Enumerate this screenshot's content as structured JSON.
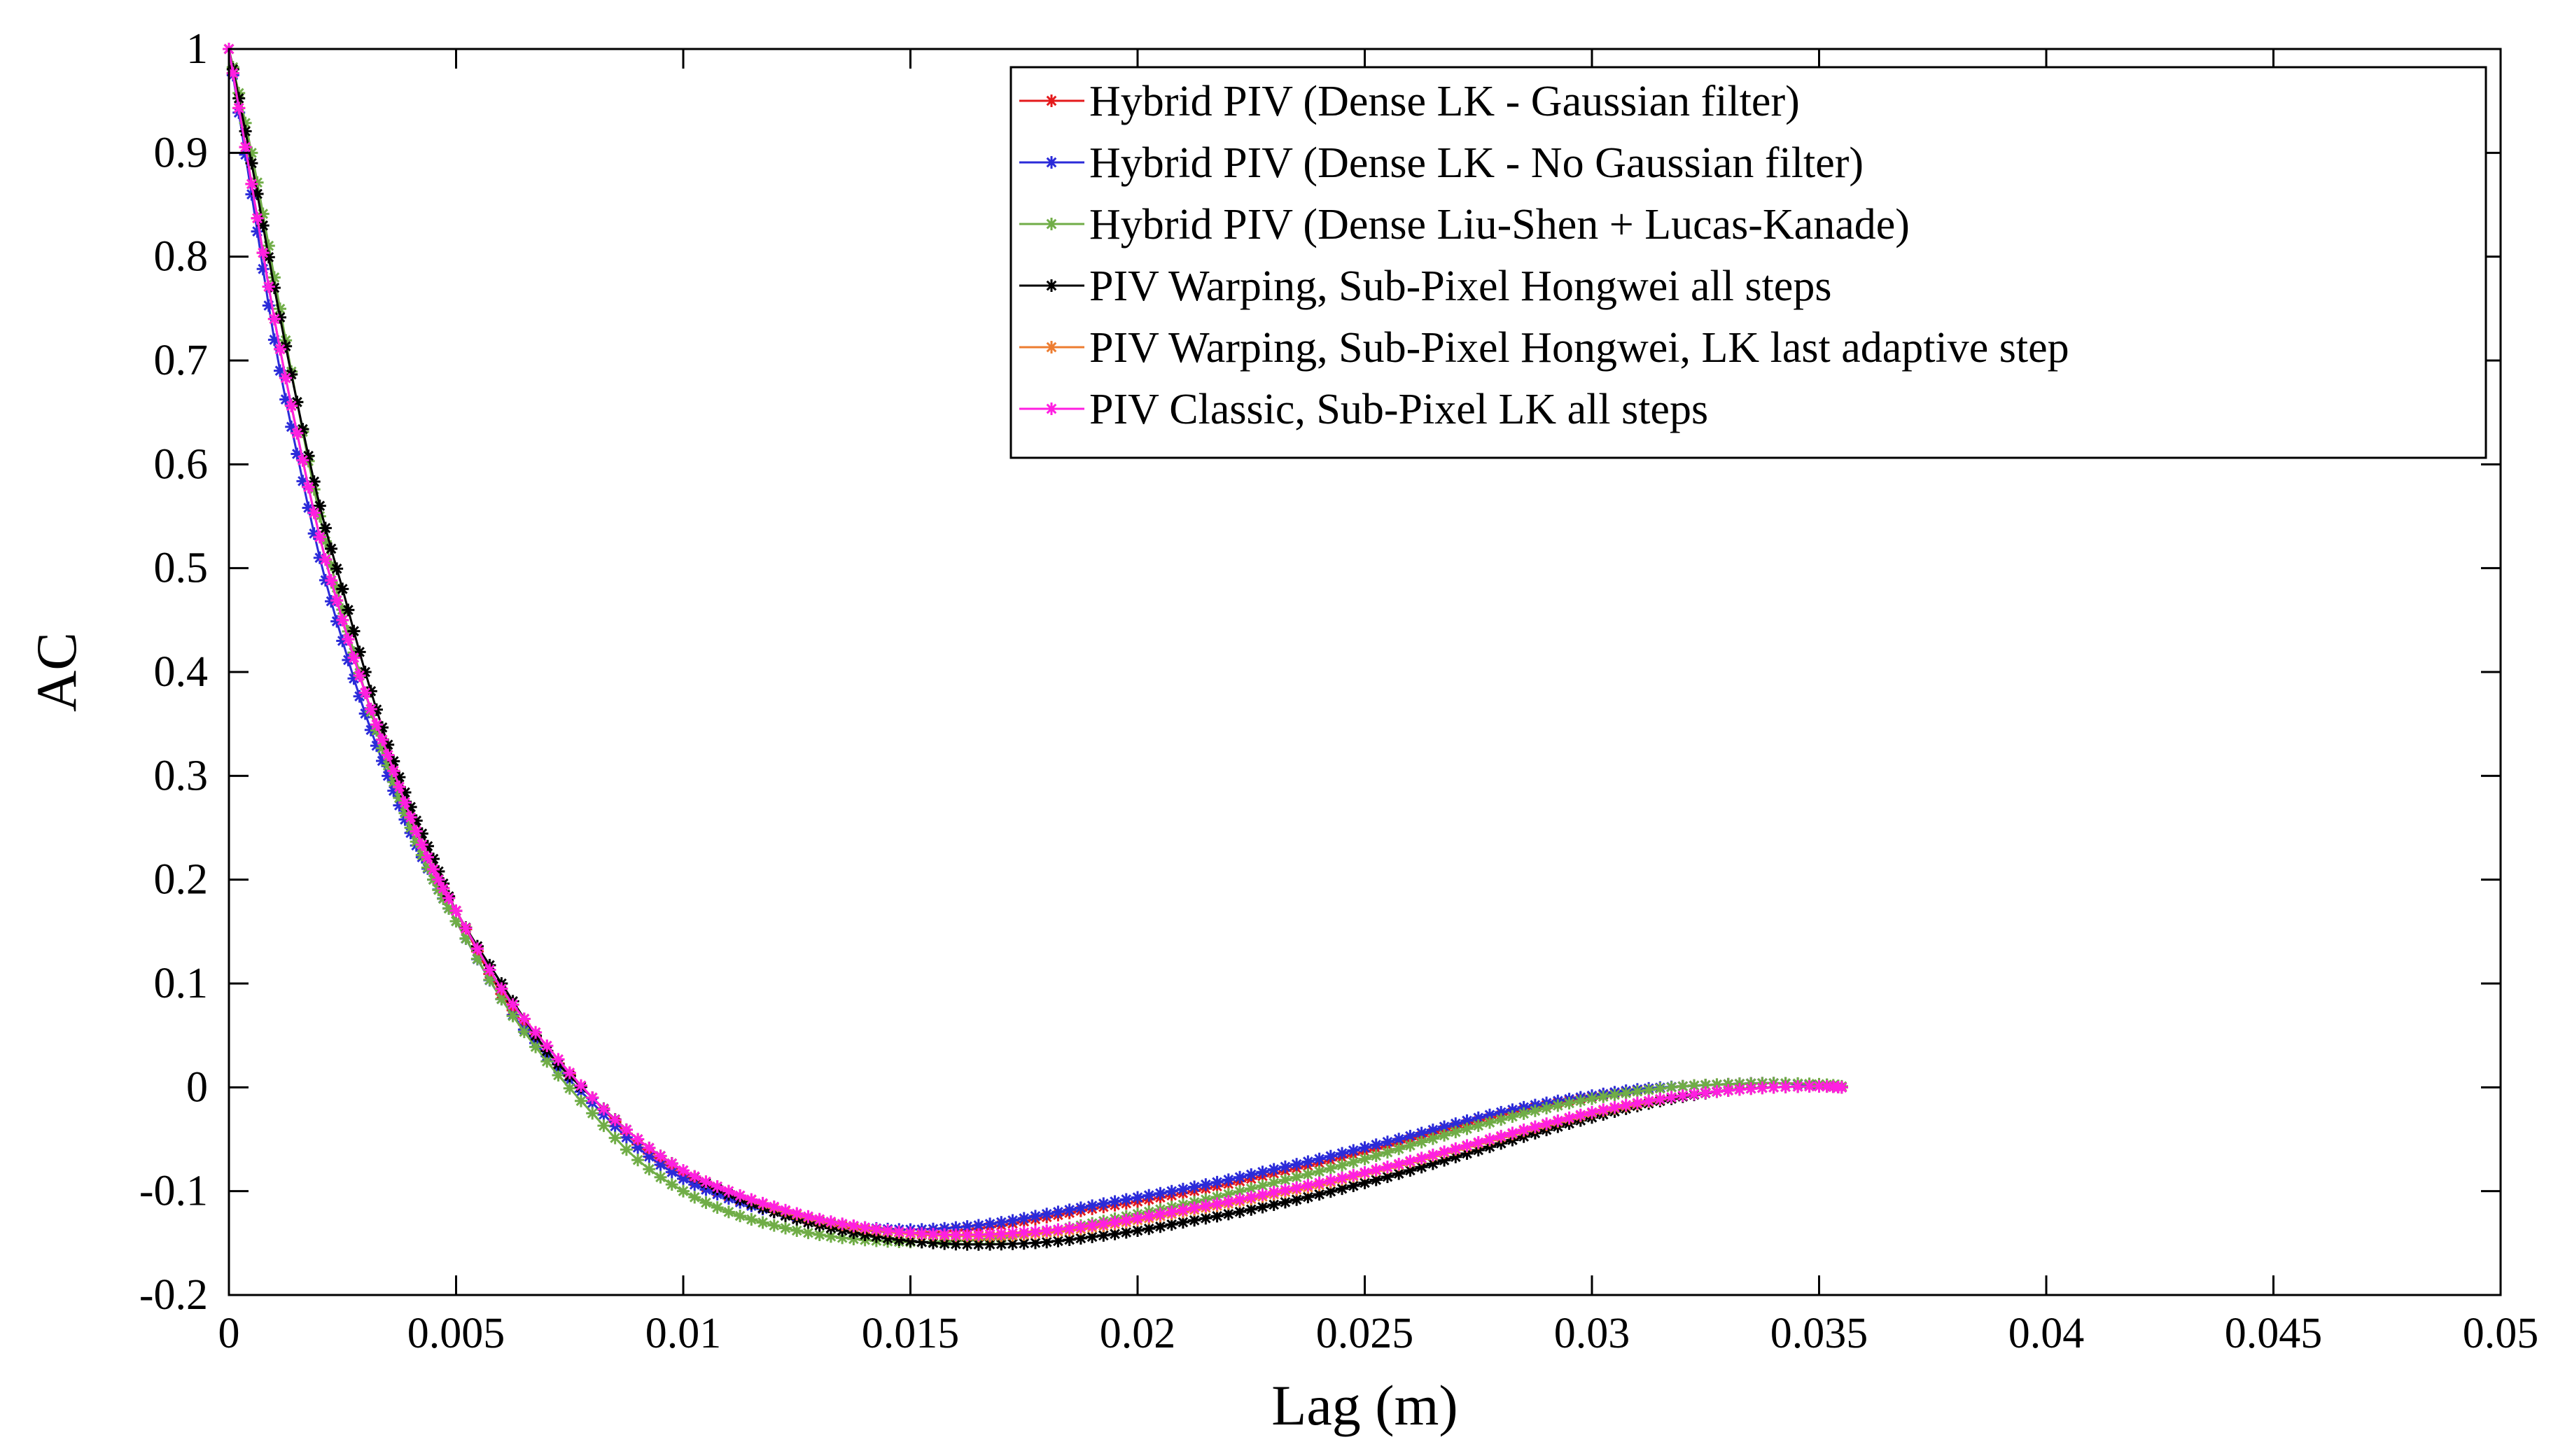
{
  "chart_data": {
    "type": "line",
    "title": "",
    "xlabel": "Lag (m)",
    "ylabel": "AC",
    "xlim": [
      0,
      0.05
    ],
    "ylim": [
      -0.2,
      1
    ],
    "xticks": [
      0,
      0.005,
      0.01,
      0.015,
      0.02,
      0.025,
      0.03,
      0.035,
      0.04,
      0.045,
      0.05
    ],
    "xtick_labels": [
      "0",
      "0.005",
      "0.01",
      "0.015",
      "0.02",
      "0.025",
      "0.03",
      "0.035",
      "0.04",
      "0.045",
      "0.05"
    ],
    "yticks": [
      -0.2,
      -0.1,
      0,
      0.1,
      0.2,
      0.3,
      0.4,
      0.5,
      0.6,
      0.7,
      0.8,
      0.9,
      1
    ],
    "ytick_labels": [
      "-0.2",
      "-0.1",
      "0",
      "0.1",
      "0.2",
      "0.3",
      "0.4",
      "0.5",
      "0.6",
      "0.7",
      "0.8",
      "0.9",
      "1"
    ],
    "grid": false,
    "legend_position": "top-right",
    "series": [
      {
        "name": "Hybrid PIV (Dense LK - Gaussian filter)",
        "color": "#e41a1c",
        "marker": "asterisk",
        "x": [
          0,
          0.0005,
          0.001,
          0.0015,
          0.002,
          0.0025,
          0.003,
          0.0035,
          0.004,
          0.0045,
          0.005,
          0.006,
          0.007,
          0.008,
          0.009,
          0.01,
          0.011,
          0.012,
          0.013,
          0.014,
          0.015,
          0.016,
          0.017,
          0.018,
          0.019,
          0.02,
          0.021,
          0.022,
          0.023,
          0.024,
          0.025,
          0.026,
          0.027,
          0.028,
          0.029,
          0.03,
          0.031,
          0.032,
          0.033,
          0.034,
          0.035,
          0.0355
        ],
        "y": [
          1,
          0.87,
          0.74,
          0.63,
          0.53,
          0.45,
          0.38,
          0.32,
          0.26,
          0.21,
          0.17,
          0.09,
          0.035,
          -0.01,
          -0.055,
          -0.085,
          -0.105,
          -0.12,
          -0.13,
          -0.137,
          -0.14,
          -0.138,
          -0.133,
          -0.125,
          -0.117,
          -0.11,
          -0.102,
          -0.093,
          -0.083,
          -0.073,
          -0.062,
          -0.05,
          -0.038,
          -0.027,
          -0.017,
          -0.009,
          -0.003,
          0.001,
          0.003,
          0.004,
          0.002,
          0.0
        ]
      },
      {
        "name": "Hybrid PIV (Dense LK - No Gaussian filter)",
        "color": "#2b2bd9",
        "marker": "asterisk",
        "x": [
          0,
          0.0005,
          0.001,
          0.0015,
          0.002,
          0.0025,
          0.003,
          0.0035,
          0.004,
          0.0045,
          0.005,
          0.006,
          0.007,
          0.008,
          0.009,
          0.01,
          0.011,
          0.012,
          0.013,
          0.014,
          0.015,
          0.016,
          0.017,
          0.018,
          0.019,
          0.02,
          0.021,
          0.022,
          0.023,
          0.024,
          0.025,
          0.026,
          0.027,
          0.028,
          0.029,
          0.03,
          0.031,
          0.032,
          0.033,
          0.034,
          0.035,
          0.0355
        ],
        "y": [
          1,
          0.86,
          0.72,
          0.61,
          0.51,
          0.43,
          0.36,
          0.3,
          0.245,
          0.2,
          0.16,
          0.085,
          0.03,
          -0.015,
          -0.058,
          -0.088,
          -0.107,
          -0.12,
          -0.129,
          -0.135,
          -0.137,
          -0.135,
          -0.13,
          -0.122,
          -0.114,
          -0.106,
          -0.098,
          -0.089,
          -0.079,
          -0.069,
          -0.058,
          -0.047,
          -0.035,
          -0.024,
          -0.015,
          -0.008,
          -0.002,
          0.001,
          0.003,
          0.004,
          0.002,
          0.0
        ]
      },
      {
        "name": "Hybrid PIV (Dense Liu-Shen + Lucas-Kanade)",
        "color": "#70ad47",
        "marker": "asterisk",
        "x": [
          0,
          0.0005,
          0.001,
          0.0015,
          0.002,
          0.0025,
          0.003,
          0.0035,
          0.004,
          0.0045,
          0.005,
          0.006,
          0.007,
          0.008,
          0.009,
          0.01,
          0.011,
          0.012,
          0.013,
          0.014,
          0.015,
          0.016,
          0.017,
          0.018,
          0.019,
          0.02,
          0.021,
          0.022,
          0.023,
          0.024,
          0.025,
          0.026,
          0.027,
          0.028,
          0.029,
          0.03,
          0.031,
          0.032,
          0.033,
          0.034,
          0.035,
          0.0355
        ],
        "y": [
          1,
          0.9,
          0.78,
          0.66,
          0.55,
          0.46,
          0.38,
          0.31,
          0.25,
          0.2,
          0.16,
          0.085,
          0.025,
          -0.025,
          -0.07,
          -0.1,
          -0.12,
          -0.133,
          -0.142,
          -0.147,
          -0.149,
          -0.148,
          -0.145,
          -0.139,
          -0.131,
          -0.122,
          -0.113,
          -0.103,
          -0.092,
          -0.081,
          -0.069,
          -0.056,
          -0.043,
          -0.031,
          -0.02,
          -0.011,
          -0.004,
          0.001,
          0.003,
          0.004,
          0.003,
          0.001
        ]
      },
      {
        "name": "PIV Warping, Sub-Pixel Hongwei all steps",
        "color": "#000000",
        "marker": "asterisk",
        "x": [
          0,
          0.0005,
          0.001,
          0.0015,
          0.002,
          0.0025,
          0.003,
          0.0035,
          0.004,
          0.0045,
          0.005,
          0.006,
          0.007,
          0.008,
          0.009,
          0.01,
          0.011,
          0.012,
          0.013,
          0.014,
          0.015,
          0.016,
          0.017,
          0.018,
          0.019,
          0.02,
          0.021,
          0.022,
          0.023,
          0.024,
          0.025,
          0.026,
          0.027,
          0.028,
          0.029,
          0.03,
          0.031,
          0.032,
          0.033,
          0.034,
          0.035,
          0.0355
        ],
        "y": [
          1,
          0.89,
          0.77,
          0.66,
          0.56,
          0.48,
          0.4,
          0.33,
          0.27,
          0.22,
          0.17,
          0.1,
          0.035,
          -0.01,
          -0.05,
          -0.08,
          -0.103,
          -0.12,
          -0.133,
          -0.142,
          -0.148,
          -0.151,
          -0.151,
          -0.149,
          -0.144,
          -0.138,
          -0.13,
          -0.122,
          -0.113,
          -0.103,
          -0.092,
          -0.08,
          -0.067,
          -0.054,
          -0.041,
          -0.029,
          -0.018,
          -0.009,
          -0.003,
          0.0,
          0.001,
          0.0
        ]
      },
      {
        "name": "PIV Warping, Sub-Pixel Hongwei, LK last adaptive step",
        "color": "#ed7d31",
        "marker": "asterisk",
        "x": [
          0,
          0.0005,
          0.001,
          0.0015,
          0.002,
          0.0025,
          0.003,
          0.0035,
          0.004,
          0.0045,
          0.005,
          0.006,
          0.007,
          0.008,
          0.009,
          0.01,
          0.011,
          0.012,
          0.013,
          0.014,
          0.015,
          0.016,
          0.017,
          0.018,
          0.019,
          0.02,
          0.021,
          0.022,
          0.023,
          0.024,
          0.025,
          0.026,
          0.027,
          0.028,
          0.029,
          0.03,
          0.031,
          0.032,
          0.033,
          0.034,
          0.035,
          0.0355
        ],
        "y": [
          1,
          0.87,
          0.74,
          0.63,
          0.53,
          0.45,
          0.38,
          0.32,
          0.26,
          0.21,
          0.17,
          0.095,
          0.04,
          -0.01,
          -0.05,
          -0.08,
          -0.1,
          -0.116,
          -0.128,
          -0.136,
          -0.141,
          -0.143,
          -0.143,
          -0.14,
          -0.135,
          -0.128,
          -0.12,
          -0.112,
          -0.103,
          -0.094,
          -0.083,
          -0.072,
          -0.06,
          -0.048,
          -0.036,
          -0.025,
          -0.016,
          -0.008,
          -0.003,
          0.0,
          0.001,
          0.0
        ]
      },
      {
        "name": "PIV Classic, Sub-Pixel LK all steps",
        "color": "#ff1fe1",
        "marker": "asterisk",
        "x": [
          0,
          0.0005,
          0.001,
          0.0015,
          0.002,
          0.0025,
          0.003,
          0.0035,
          0.004,
          0.0045,
          0.005,
          0.006,
          0.007,
          0.008,
          0.009,
          0.01,
          0.011,
          0.012,
          0.013,
          0.014,
          0.015,
          0.016,
          0.017,
          0.018,
          0.019,
          0.02,
          0.021,
          0.022,
          0.023,
          0.024,
          0.025,
          0.026,
          0.027,
          0.028,
          0.029,
          0.03,
          0.031,
          0.032,
          0.033,
          0.034,
          0.035,
          0.0355
        ],
        "y": [
          1,
          0.87,
          0.74,
          0.63,
          0.53,
          0.45,
          0.38,
          0.32,
          0.26,
          0.21,
          0.17,
          0.095,
          0.04,
          -0.01,
          -0.05,
          -0.08,
          -0.1,
          -0.115,
          -0.127,
          -0.135,
          -0.14,
          -0.142,
          -0.141,
          -0.138,
          -0.133,
          -0.126,
          -0.118,
          -0.11,
          -0.101,
          -0.092,
          -0.082,
          -0.071,
          -0.059,
          -0.047,
          -0.035,
          -0.024,
          -0.015,
          -0.008,
          -0.003,
          0.0,
          0.001,
          0.0
        ]
      }
    ]
  }
}
